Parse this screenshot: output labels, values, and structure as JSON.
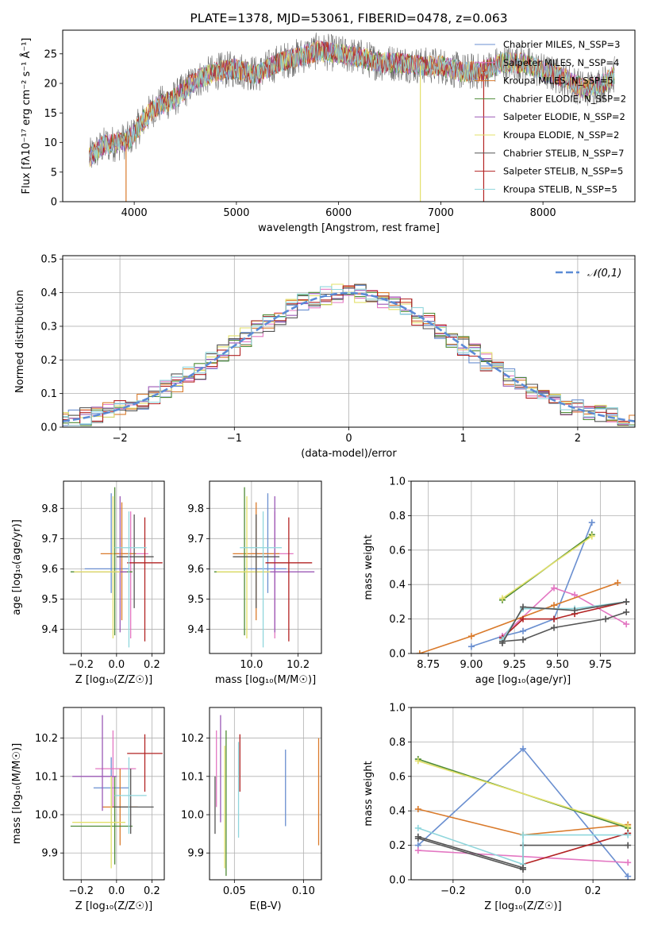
{
  "chart_data": [
    {
      "id": "spectrum",
      "type": "line",
      "title": "PLATE=1378, MJD=53061, FIBERID=0478, z=0.063",
      "xlabel": "wavelength [Angstrom, rest frame]",
      "ylabel": "Flux [fλ10⁻¹⁷ erg cm⁻² s⁻¹ Å⁻¹]",
      "xlim": [
        3300,
        8900
      ],
      "ylim": [
        0,
        29
      ],
      "xticks": [
        4000,
        5000,
        6000,
        7000,
        8000
      ],
      "yticks": [
        0,
        5,
        10,
        15,
        20,
        25
      ],
      "legend_position": "top-right",
      "continuum": {
        "x": [
          3560,
          3700,
          3850,
          3950,
          4100,
          4200,
          4400,
          4600,
          4800,
          5000,
          5200,
          5400,
          5600,
          5800,
          6000,
          6200,
          6400,
          6600,
          6800,
          7000,
          7200,
          7400,
          7600,
          7800,
          8000,
          8200,
          8400,
          8600,
          8700
        ],
        "y": [
          7.5,
          9.5,
          10,
          10.5,
          14,
          16,
          17.5,
          20.5,
          22,
          22.5,
          21.5,
          23.5,
          24.5,
          25.5,
          25,
          24.5,
          23.5,
          23.5,
          23,
          23,
          22,
          22,
          23.5,
          23.5,
          22,
          21,
          19,
          20,
          21.5
        ]
      },
      "series": [
        {
          "name": "Chabrier MILES, N_SSP=3",
          "color": "#6a8fd0"
        },
        {
          "name": "Salpeter MILES, N_SSP=4",
          "color": "#e377c2"
        },
        {
          "name": "Kroupa MILES, N_SSP=5",
          "color": "#d97a2b"
        },
        {
          "name": "Chabrier ELODIE, N_SSP=2",
          "color": "#4d8a34"
        },
        {
          "name": "Salpeter ELODIE, N_SSP=2",
          "color": "#9b59b6"
        },
        {
          "name": "Kroupa ELODIE, N_SSP=2",
          "color": "#e3e06a"
        },
        {
          "name": "Chabrier STELIB, N_SSP=7",
          "color": "#555555"
        },
        {
          "name": "Salpeter STELIB, N_SSP=5",
          "color": "#b22222"
        },
        {
          "name": "Kroupa STELIB, N_SSP=5",
          "color": "#8fd6dc"
        }
      ],
      "drops": [
        {
          "x": 3920,
          "color": "#d97a2b"
        },
        {
          "x": 6800,
          "color": "#e3e06a"
        },
        {
          "x": 7420,
          "color": "#b22222"
        }
      ]
    },
    {
      "id": "residuals",
      "type": "histogram",
      "xlabel": "(data-model)/error",
      "ylabel": "Normed distribution",
      "xlim": [
        -2.5,
        2.5
      ],
      "ylim": [
        0,
        0.51
      ],
      "xticks": [
        -2,
        -1,
        0,
        1,
        2
      ],
      "yticks": [
        0.0,
        0.1,
        0.2,
        0.3,
        0.4,
        0.5
      ],
      "reference_label": "𝒩(0,1)",
      "reference_color": "#5b8bd6",
      "bin_width": 0.1,
      "curve": {
        "mean": 0,
        "sigma": 1
      },
      "series_colors": [
        "#6a8fd0",
        "#e377c2",
        "#d97a2b",
        "#4d8a34",
        "#9b59b6",
        "#e3e06a",
        "#555555",
        "#b22222",
        "#8fd6dc"
      ]
    },
    {
      "id": "age_vs_Z",
      "type": "errorbar",
      "xlabel": "Z [log₁₀(Z/Z☉)]",
      "ylabel": "age  [log₁₀(age/yr)]",
      "xlim": [
        -0.3,
        0.27
      ],
      "ylim": [
        9.32,
        9.89
      ],
      "xticks": [
        -0.2,
        0.0,
        0.2
      ],
      "yticks": [
        9.4,
        9.5,
        9.6,
        9.7,
        9.8
      ],
      "points": [
        {
          "x": -0.03,
          "y": 9.6,
          "xerr": [
            0.15,
            0.1
          ],
          "yerr": [
            0.08,
            0.25
          ],
          "color": "#6a8fd0"
        },
        {
          "x": 0.08,
          "y": 9.65,
          "xerr": [
            0.08,
            0.1
          ],
          "yerr": [
            0.28,
            0.14
          ],
          "color": "#e377c2"
        },
        {
          "x": 0.03,
          "y": 9.65,
          "xerr": [
            0.12,
            0.08
          ],
          "yerr": [
            0.22,
            0.17
          ],
          "color": "#d97a2b"
        },
        {
          "x": -0.01,
          "y": 9.59,
          "xerr": [
            0.25,
            0.1
          ],
          "yerr": [
            0.21,
            0.28
          ],
          "color": "#4d8a34"
        },
        {
          "x": 0.02,
          "y": 9.59,
          "xerr": [
            0.25,
            0.04
          ],
          "yerr": [
            0.2,
            0.25
          ],
          "color": "#9b59b6"
        },
        {
          "x": -0.02,
          "y": 9.59,
          "xerr": [
            0.22,
            0.04
          ],
          "yerr": [
            0.22,
            0.25
          ],
          "color": "#e3e06a"
        },
        {
          "x": 0.1,
          "y": 9.64,
          "xerr": [
            0.1,
            0.11
          ],
          "yerr": [
            0.17,
            0.14
          ],
          "color": "#555555"
        },
        {
          "x": 0.16,
          "y": 9.62,
          "xerr": [
            0.1,
            0.1
          ],
          "yerr": [
            0.26,
            0.15
          ],
          "color": "#b22222"
        },
        {
          "x": 0.07,
          "y": 9.67,
          "xerr": [
            0.08,
            0.1
          ],
          "yerr": [
            0.33,
            0.12
          ],
          "color": "#8fd6dc"
        }
      ]
    },
    {
      "id": "age_vs_mass",
      "type": "errorbar",
      "xlabel": "mass [log₁₀(M/M☉)]",
      "ylabel": "",
      "xlim": [
        9.82,
        10.3
      ],
      "ylim": [
        9.32,
        9.89
      ],
      "xticks": [
        10.0,
        10.2
      ],
      "yticks": [
        9.4,
        9.5,
        9.6,
        9.7,
        9.8
      ],
      "points": [
        {
          "x": 10.07,
          "y": 9.6,
          "xerr": [
            0.1,
            0.08
          ],
          "yerr": [
            0.08,
            0.25
          ],
          "color": "#6a8fd0"
        },
        {
          "x": 10.1,
          "y": 9.65,
          "xerr": [
            0.1,
            0.08
          ],
          "yerr": [
            0.28,
            0.14
          ],
          "color": "#e377c2"
        },
        {
          "x": 10.02,
          "y": 9.65,
          "xerr": [
            0.1,
            0.1
          ],
          "yerr": [
            0.22,
            0.17
          ],
          "color": "#d97a2b"
        },
        {
          "x": 9.97,
          "y": 9.59,
          "xerr": [
            0.13,
            0.1
          ],
          "yerr": [
            0.21,
            0.28
          ],
          "color": "#4d8a34"
        },
        {
          "x": 10.1,
          "y": 9.59,
          "xerr": [
            0.12,
            0.17
          ],
          "yerr": [
            0.2,
            0.25
          ],
          "color": "#9b59b6"
        },
        {
          "x": 9.98,
          "y": 9.59,
          "xerr": [
            0.13,
            0.1
          ],
          "yerr": [
            0.22,
            0.25
          ],
          "color": "#e3e06a"
        },
        {
          "x": 10.02,
          "y": 9.64,
          "xerr": [
            0.1,
            0.1
          ],
          "yerr": [
            0.17,
            0.14
          ],
          "color": "#555555"
        },
        {
          "x": 10.16,
          "y": 9.62,
          "xerr": [
            0.1,
            0.1
          ],
          "yerr": [
            0.26,
            0.15
          ],
          "color": "#b22222"
        },
        {
          "x": 10.05,
          "y": 9.67,
          "xerr": [
            0.1,
            0.08
          ],
          "yerr": [
            0.33,
            0.12
          ],
          "color": "#8fd6dc"
        }
      ]
    },
    {
      "id": "weight_vs_age",
      "type": "line",
      "xlabel": "age  [log₁₀(age/yr)]",
      "ylabel": "mass weight",
      "xlim": [
        8.65,
        9.95
      ],
      "ylim": [
        0,
        1
      ],
      "xticks": [
        8.75,
        9.0,
        9.25,
        9.5,
        9.75
      ],
      "yticks": [
        0.0,
        0.2,
        0.4,
        0.6,
        0.8,
        1.0
      ],
      "series": [
        {
          "color": "#6a8fd0",
          "x": [
            9.0,
            9.18,
            9.3,
            9.48,
            9.7
          ],
          "y": [
            0.04,
            0.1,
            0.13,
            0.2,
            0.76
          ]
        },
        {
          "color": "#e377c2",
          "x": [
            9.18,
            9.48,
            9.6,
            9.9
          ],
          "y": [
            0.1,
            0.38,
            0.34,
            0.17
          ]
        },
        {
          "color": "#d97a2b",
          "x": [
            8.7,
            9.0,
            9.48,
            9.85
          ],
          "y": [
            0.0,
            0.1,
            0.28,
            0.41
          ]
        },
        {
          "color": "#4d8a34",
          "x": [
            9.18,
            9.7
          ],
          "y": [
            0.31,
            0.69
          ]
        },
        {
          "color": "#e3e06a",
          "x": [
            9.18,
            9.7
          ],
          "y": [
            0.32,
            0.68
          ]
        },
        {
          "color": "#555555",
          "x": [
            9.18,
            9.3,
            9.48,
            9.78,
            9.9
          ],
          "y": [
            0.07,
            0.08,
            0.15,
            0.2,
            0.24
          ]
        },
        {
          "color": "#b22222",
          "x": [
            9.18,
            9.3,
            9.48,
            9.6,
            9.9
          ],
          "y": [
            0.09,
            0.2,
            0.2,
            0.23,
            0.3
          ]
        },
        {
          "color": "#8fd6dc",
          "x": [
            9.18,
            9.3,
            9.6,
            9.9
          ],
          "y": [
            0.08,
            0.26,
            0.26,
            0.3
          ]
        },
        {
          "color": "#555555",
          "x": [
            9.18,
            9.3,
            9.6,
            9.9
          ],
          "y": [
            0.06,
            0.27,
            0.25,
            0.3
          ]
        }
      ]
    },
    {
      "id": "mass_vs_Z",
      "type": "errorbar",
      "xlabel": "Z [log₁₀(Z/Z☉)]",
      "ylabel": "mass [log₁₀(M/M☉)]",
      "xlim": [
        -0.3,
        0.27
      ],
      "ylim": [
        9.83,
        10.28
      ],
      "xticks": [
        -0.2,
        0.0,
        0.2
      ],
      "yticks": [
        9.9,
        10.0,
        10.1,
        10.2
      ],
      "points": [
        {
          "x": -0.03,
          "y": 10.07,
          "xerr": [
            0.1,
            0.1
          ],
          "yerr": [
            0.1,
            0.08
          ],
          "color": "#6a8fd0"
        },
        {
          "x": -0.02,
          "y": 10.12,
          "xerr": [
            0.1,
            0.13
          ],
          "yerr": [
            0.1,
            0.1
          ],
          "color": "#e377c2"
        },
        {
          "x": 0.02,
          "y": 10.02,
          "xerr": [
            0.1,
            0.1
          ],
          "yerr": [
            0.1,
            0.1
          ],
          "color": "#d97a2b"
        },
        {
          "x": -0.01,
          "y": 9.97,
          "xerr": [
            0.25,
            0.1
          ],
          "yerr": [
            0.1,
            0.13
          ],
          "color": "#4d8a34"
        },
        {
          "x": -0.08,
          "y": 10.1,
          "xerr": [
            0.17,
            0.08
          ],
          "yerr": [
            0.09,
            0.16
          ],
          "color": "#9b59b6"
        },
        {
          "x": -0.03,
          "y": 9.98,
          "xerr": [
            0.22,
            0.08
          ],
          "yerr": [
            0.12,
            0.12
          ],
          "color": "#e3e06a"
        },
        {
          "x": 0.08,
          "y": 10.02,
          "xerr": [
            0.1,
            0.13
          ],
          "yerr": [
            0.07,
            0.1
          ],
          "color": "#555555"
        },
        {
          "x": 0.16,
          "y": 10.16,
          "xerr": [
            0.1,
            0.1
          ],
          "yerr": [
            0.1,
            0.05
          ],
          "color": "#b22222"
        },
        {
          "x": 0.07,
          "y": 10.05,
          "xerr": [
            0.08,
            0.1
          ],
          "yerr": [
            0.1,
            0.1
          ],
          "color": "#8fd6dc"
        }
      ]
    },
    {
      "id": "mass_vs_ebv",
      "type": "errorbar",
      "xlabel": "E(B-V)",
      "ylabel": "",
      "xlim": [
        0.032,
        0.113
      ],
      "ylim": [
        9.83,
        10.28
      ],
      "xticks": [
        0.05,
        0.1
      ],
      "yticks": [
        9.9,
        10.0,
        10.1,
        10.2
      ],
      "points": [
        {
          "x": 0.087,
          "y": 10.07,
          "yerr": [
            0.1,
            0.1
          ],
          "color": "#6a8fd0"
        },
        {
          "x": 0.037,
          "y": 10.12,
          "yerr": [
            0.1,
            0.1
          ],
          "color": "#e377c2"
        },
        {
          "x": 0.111,
          "y": 10.02,
          "yerr": [
            0.1,
            0.18
          ],
          "color": "#d97a2b"
        },
        {
          "x": 0.044,
          "y": 9.97,
          "yerr": [
            0.13,
            0.25
          ],
          "color": "#4d8a34"
        },
        {
          "x": 0.04,
          "y": 10.1,
          "yerr": [
            0.12,
            0.16
          ],
          "color": "#9b59b6"
        },
        {
          "x": 0.043,
          "y": 9.98,
          "yerr": [
            0.12,
            0.2
          ],
          "color": "#e3e06a"
        },
        {
          "x": 0.036,
          "y": 10.02,
          "yerr": [
            0.07,
            0.08
          ],
          "color": "#555555"
        },
        {
          "x": 0.054,
          "y": 10.16,
          "yerr": [
            0.1,
            0.05
          ],
          "color": "#b22222"
        },
        {
          "x": 0.053,
          "y": 10.05,
          "yerr": [
            0.11,
            0.14
          ],
          "color": "#8fd6dc"
        }
      ]
    },
    {
      "id": "weight_vs_Z",
      "type": "line",
      "xlabel": "Z [log₁₀(Z/Z☉)]",
      "ylabel": "mass weight",
      "xlim": [
        -0.32,
        0.32
      ],
      "ylim": [
        0,
        1
      ],
      "xticks": [
        -0.2,
        0.0,
        0.2
      ],
      "yticks": [
        0.0,
        0.2,
        0.4,
        0.6,
        0.8,
        1.0
      ],
      "series": [
        {
          "color": "#6a8fd0",
          "x": [
            -0.3,
            0.0,
            0.3
          ],
          "y": [
            0.2,
            0.76,
            0.02
          ]
        },
        {
          "color": "#e377c2",
          "x": [
            -0.3,
            0.3
          ],
          "y": [
            0.17,
            0.1
          ]
        },
        {
          "color": "#d97a2b",
          "x": [
            -0.3,
            0.0,
            0.3
          ],
          "y": [
            0.41,
            0.26,
            0.32
          ]
        },
        {
          "color": "#4d8a34",
          "x": [
            -0.3,
            0.3
          ],
          "y": [
            0.7,
            0.3
          ]
        },
        {
          "color": "#e3e06a",
          "x": [
            -0.3,
            0.3
          ],
          "y": [
            0.69,
            0.31
          ]
        },
        {
          "color": "#555555",
          "x": [
            -0.3,
            0.0,
            0.0,
            0.3
          ],
          "y": [
            0.24,
            0.06,
            0.2,
            0.2
          ]
        },
        {
          "color": "#b22222",
          "x": [
            0.0,
            0.3
          ],
          "y": [
            0.09,
            0.27
          ]
        },
        {
          "color": "#8fd6dc",
          "x": [
            -0.3,
            0.0,
            0.0,
            0.3
          ],
          "y": [
            0.3,
            0.09,
            0.26,
            0.26
          ]
        },
        {
          "color": "#555555",
          "x": [
            -0.3,
            0.0
          ],
          "y": [
            0.25,
            0.07
          ]
        }
      ]
    }
  ]
}
